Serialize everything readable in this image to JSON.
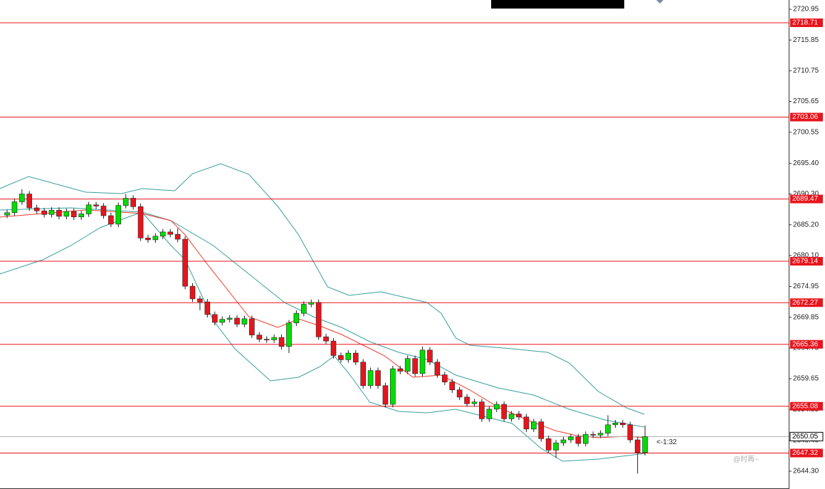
{
  "chart_data": {
    "type": "candlestick",
    "ylim": [
      2641.35,
      2722.49
    ],
    "yticks": [
      2720.95,
      2715.85,
      2710.75,
      2705.65,
      2700.55,
      {
        "value": 2695.4,
        "label": "2695.40"
      },
      {
        "value": 2690.3,
        "label": "2690.30"
      },
      {
        "value": 2685.2,
        "label": "2685.20"
      },
      {
        "value": 2680.1,
        "label": "2680.10"
      },
      2674.95,
      2669.85,
      2664.75,
      2659.65,
      2654.55,
      {
        "value": 2649.4,
        "label": "2649.40"
      },
      {
        "value": 2644.3,
        "label": "2644.30"
      }
    ],
    "up_color": "#00dd00",
    "down_color": "#e8141c",
    "candles": {
      "open": [
        2686.8,
        2687.2,
        2689.0,
        2690.3,
        2688.0,
        2687.5,
        2686.9,
        2687.6,
        2686.6,
        2687.4,
        2686.5,
        2687.0,
        2688.5,
        2688.3,
        2686.7,
        2685.3,
        2688.4,
        2689.6,
        2688.2,
        2683.0,
        2682.7,
        2683.3,
        2684.0,
        2683.6,
        2682.8,
        2675.0,
        2672.9,
        2672.4,
        2670.3,
        2669.0,
        2669.5,
        2669.7,
        2668.7,
        2669.6,
        2666.9,
        2666.2,
        2666.1,
        2666.5,
        2665.0,
        2668.9,
        2670.5,
        2672.0,
        2672.3,
        2666.6,
        2665.9,
        2663.5,
        2662.8,
        2663.9,
        2662.4,
        2658.5,
        2661.0,
        2658.5,
        2655.4,
        2661.3,
        2660.9,
        2663.0,
        2660.5,
        2664.4,
        2662.4,
        2660.3,
        2659.1,
        2657.8,
        2656.6,
        2655.5,
        2655.8,
        2653.0,
        2654.6,
        2655.4,
        2653.0,
        2653.8,
        2653.3,
        2651.3,
        2652.5,
        2649.7,
        2647.8,
        2649.0,
        2649.5,
        2650.0,
        2648.9,
        2650.4,
        2650.3,
        2650.6,
        2652.0,
        2652.3,
        2652.0,
        2649.5,
        2647.4
      ],
      "high": [
        2687.7,
        2689.5,
        2691.1,
        2690.8,
        2688.5,
        2688.0,
        2688.1,
        2688.1,
        2687.9,
        2687.9,
        2687.5,
        2689.0,
        2689.0,
        2688.8,
        2687.2,
        2688.9,
        2690.3,
        2690.1,
        2688.7,
        2683.5,
        2683.8,
        2684.5,
        2684.5,
        2684.6,
        2683.3,
        2675.5,
        2673.4,
        2672.9,
        2670.8,
        2670.0,
        2670.2,
        2670.2,
        2670.1,
        2670.1,
        2667.4,
        2666.7,
        2667.0,
        2667.0,
        2669.4,
        2671.0,
        2672.5,
        2672.8,
        2672.8,
        2667.1,
        2666.4,
        2664.0,
        2664.4,
        2664.4,
        2662.9,
        2661.5,
        2661.5,
        2659.0,
        2661.8,
        2661.8,
        2663.5,
        2663.5,
        2665.0,
        2664.9,
        2662.9,
        2660.8,
        2659.6,
        2658.3,
        2657.1,
        2656.3,
        2656.3,
        2655.1,
        2655.9,
        2655.9,
        2654.3,
        2654.3,
        2653.8,
        2653.0,
        2653.0,
        2650.2,
        2649.5,
        2650.0,
        2650.5,
        2650.5,
        2650.9,
        2650.9,
        2651.1,
        2653.6,
        2652.8,
        2652.8,
        2652.5,
        2650.0,
        2651.9
      ],
      "low": [
        2686.3,
        2686.7,
        2688.5,
        2687.5,
        2687.0,
        2686.4,
        2686.4,
        2686.1,
        2686.1,
        2686.0,
        2686.0,
        2686.5,
        2687.8,
        2686.2,
        2684.8,
        2684.8,
        2687.9,
        2687.7,
        2682.5,
        2682.2,
        2682.2,
        2682.8,
        2683.1,
        2682.3,
        2674.5,
        2672.4,
        2671.0,
        2669.8,
        2668.5,
        2668.5,
        2669.0,
        2668.2,
        2668.2,
        2666.4,
        2665.7,
        2665.6,
        2665.6,
        2664.5,
        2663.9,
        2668.4,
        2670.0,
        2671.5,
        2666.1,
        2665.4,
        2663.0,
        2662.3,
        2662.3,
        2661.9,
        2658.0,
        2658.0,
        2658.0,
        2654.9,
        2654.9,
        2660.4,
        2660.4,
        2660.0,
        2660.0,
        2661.9,
        2659.8,
        2658.6,
        2657.3,
        2656.1,
        2655.0,
        2655.0,
        2652.5,
        2652.5,
        2654.1,
        2652.5,
        2652.5,
        2652.8,
        2650.8,
        2650.8,
        2649.2,
        2647.3,
        2646.5,
        2648.5,
        2649.0,
        2648.4,
        2648.4,
        2649.8,
        2649.8,
        2650.1,
        2651.5,
        2651.5,
        2649.0,
        2643.9,
        2646.9
      ],
      "close": [
        2687.2,
        2689.0,
        2690.3,
        2688.0,
        2687.5,
        2686.9,
        2687.6,
        2686.6,
        2687.4,
        2686.5,
        2687.0,
        2688.5,
        2688.3,
        2686.7,
        2685.3,
        2688.4,
        2689.6,
        2688.2,
        2683.0,
        2682.7,
        2683.3,
        2684.0,
        2683.6,
        2682.8,
        2675.0,
        2672.9,
        2672.4,
        2670.3,
        2669.0,
        2669.5,
        2669.7,
        2668.7,
        2669.6,
        2666.9,
        2666.2,
        2666.1,
        2666.5,
        2665.0,
        2668.9,
        2670.5,
        2672.0,
        2672.3,
        2666.6,
        2665.9,
        2663.5,
        2662.8,
        2663.9,
        2662.4,
        2658.5,
        2661.0,
        2658.5,
        2655.4,
        2661.3,
        2660.9,
        2663.0,
        2660.5,
        2664.4,
        2662.4,
        2660.3,
        2659.1,
        2657.8,
        2656.6,
        2655.5,
        2655.8,
        2653.0,
        2654.6,
        2655.4,
        2653.0,
        2653.8,
        2653.3,
        2651.3,
        2652.5,
        2649.7,
        2647.8,
        2649.0,
        2649.5,
        2650.0,
        2648.9,
        2650.4,
        2650.3,
        2650.6,
        2652.0,
        2652.3,
        2652.0,
        2649.5,
        2647.4,
        2650.05
      ]
    },
    "lines": [
      {
        "color": "#3a9ea0",
        "x": [
          -1,
          2.9,
          10.6,
          15.4,
          18.2,
          22.6,
          25,
          28.8,
          32.6,
          36.5,
          39.3,
          43.2,
          46.1,
          50.4,
          56.6,
          58.5,
          60.5,
          62.4,
          68.1,
          72.9,
          75.8,
          79.7,
          83.5,
          85.9
        ],
        "values": [
          2691.19,
          2693.2,
          2690.6,
          2690.37,
          2691.19,
          2690.84,
          2693.67,
          2695.33,
          2693.55,
          2688.24,
          2683.52,
          2674.89,
          2673.48,
          2674.07,
          2672.29,
          2670.52,
          2666.39,
          2665.21,
          2664.62,
          2664.03,
          2662.26,
          2657.53,
          2654.82,
          2653.75
        ]
      },
      {
        "color": "#3a9ea0",
        "x": [
          -1,
          8.6,
          18.2,
          22.1,
          27.8,
          32.6,
          37.4,
          41.3,
          45.1,
          48.9,
          52.8,
          56.6,
          60.5,
          66.2,
          71,
          75.8,
          80.6,
          85.9
        ],
        "values": [
          2687.65,
          2688.0,
          2687.29,
          2685.88,
          2681.74,
          2677.02,
          2672.29,
          2669.93,
          2668.16,
          2665.8,
          2664.03,
          2662.85,
          2660.25,
          2658.12,
          2656.94,
          2654.58,
          2652.81,
          2651.63
        ]
      },
      {
        "color": "#3a9ea0",
        "x": [
          -1,
          4.8,
          8.6,
          12.5,
          16.3,
          18.2,
          22.1,
          24,
          27.8,
          30.7,
          35.5,
          39.3,
          42.2,
          44.1,
          46.1,
          48.9,
          52.8,
          56.6,
          60.5,
          64.3,
          68.1,
          72,
          74.9,
          79.7,
          86
        ],
        "values": [
          2677.02,
          2679.38,
          2681.74,
          2684.7,
          2686.47,
          2687.29,
          2681.74,
          2679.38,
          2669.34,
          2664.62,
          2659.3,
          2659.89,
          2661.67,
          2663.44,
          2660.48,
          2655.76,
          2654.22,
          2653.99,
          2654.58,
          2653.4,
          2652.22,
          2648.08,
          2645.96,
          2646.31,
          2647.26
        ]
      },
      {
        "color": "#f03a2a",
        "x": [
          -1,
          4.8,
          10.6,
          18.2,
          22.1,
          24,
          26.9,
          30.7,
          32.6,
          36.5,
          39.3,
          42.2,
          45.1,
          48,
          50.9,
          54.7,
          58.5,
          62.4,
          66.2,
          70.1,
          73.9,
          76.8,
          79.7,
          83.5,
          85.9
        ],
        "values": [
          2686.47,
          2687.06,
          2687.65,
          2687.06,
          2685.88,
          2683.52,
          2678.79,
          2672.89,
          2669.93,
          2668.16,
          2669.58,
          2668.4,
          2666.98,
          2665.21,
          2663.44,
          2659.89,
          2660.25,
          2657.77,
          2654.93,
          2652.81,
          2651.04,
          2650.21,
          2649.86,
          2650.09,
          2649.86
        ]
      }
    ],
    "levels": [
      2718.71,
      2703.06,
      2689.47,
      2679.14,
      2672.27,
      2665.36,
      2655.08,
      2647.32
    ],
    "level_color": "#e8141c",
    "current_price": 2650.05,
    "annotation": "<-1:32",
    "watermark": "@时再~"
  }
}
